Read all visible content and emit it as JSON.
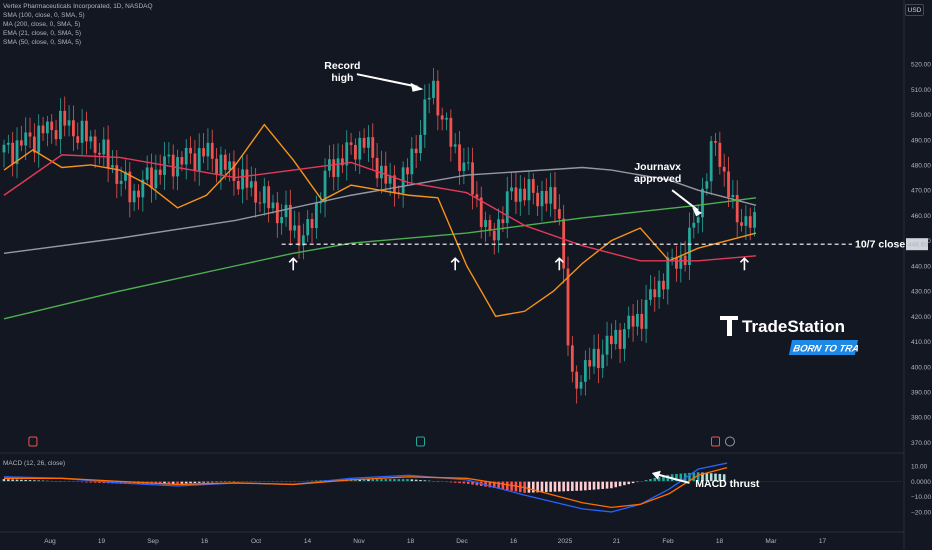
{
  "header": {
    "title": "Vertex Pharmaceuticals Incorporated, 1D, NASDAQ",
    "indicators": [
      "SMA (100, close, 0, SMA, 5)",
      "MA (200, close, 0, SMA, 5)",
      "EMA (21, close, 0, SMA, 5)",
      "SMA (50, close, 0, SMA, 5)"
    ],
    "currency": "USD"
  },
  "brand": {
    "name": "TradeStation",
    "tagline": "BORN TO TRADE"
  },
  "colors": {
    "up": "#26a69a",
    "down": "#ef5350",
    "sma100": "#9598a1",
    "ma200": "#4caf50",
    "ema21": "#f7931a",
    "sma50": "#e53958",
    "macd_line": "#2962ff",
    "signal_line": "#ff6d00"
  },
  "chart_data": [
    {
      "type": "candlestick",
      "title": "Vertex Pharmaceuticals Incorporated, 1D, NASDAQ",
      "ylim": [
        367,
        524
      ],
      "yticks": [
        370,
        380,
        390,
        400,
        410,
        420,
        430,
        440,
        450,
        460,
        470,
        480,
        490,
        500,
        510,
        520
      ],
      "ytick_labels": [
        "370.00",
        "380.00",
        "390.00",
        "400.00",
        "410.00",
        "420.00",
        "430.00",
        "440.00",
        "450.00",
        "460.00",
        "470.00",
        "480.00",
        "490.00",
        "500.00",
        "510.00",
        "520.00"
      ],
      "xticks": [
        "Aug",
        "19",
        "Sep",
        "16",
        "Oct",
        "14",
        "Nov",
        "18",
        "Dec",
        "16",
        "2025",
        "21",
        "Feb",
        "18",
        "Mar",
        "17"
      ],
      "last_price": "448.60",
      "series": [
        {
          "name": "SMA (100, close, 0, SMA, 5)",
          "x": [
            0,
            40,
            80,
            120,
            160,
            200,
            210,
            230,
            240,
            260
          ],
          "values": [
            445,
            451,
            458,
            468,
            476,
            479,
            478,
            474,
            470,
            464
          ]
        },
        {
          "name": "MA (200, close, 0, SMA, 5)",
          "x": [
            0,
            40,
            80,
            100,
            120,
            160,
            200,
            240,
            260
          ],
          "values": [
            419,
            430,
            440,
            445,
            449,
            453,
            459,
            464,
            467
          ]
        },
        {
          "name": "EMA (21, close, 0, SMA, 5)",
          "x": [
            0,
            10,
            20,
            30,
            40,
            50,
            60,
            70,
            80,
            90,
            100,
            110,
            120,
            130,
            140,
            150,
            160,
            170,
            180,
            190,
            200,
            210,
            220,
            230,
            240,
            250,
            260
          ],
          "values": [
            478,
            486,
            479,
            480,
            478,
            472,
            463,
            468,
            480,
            496,
            482,
            466,
            472,
            470,
            468,
            467,
            440,
            420,
            422,
            430,
            441,
            450,
            455,
            442,
            447,
            450,
            453
          ]
        },
        {
          "name": "SMA (50, close, 0, SMA, 5)",
          "x": [
            0,
            20,
            40,
            60,
            80,
            100,
            120,
            140,
            160,
            180,
            200,
            220,
            240,
            260
          ],
          "values": [
            468,
            484,
            483,
            479,
            475,
            478,
            481,
            473,
            469,
            456,
            448,
            442,
            442,
            444
          ]
        }
      ],
      "annotations": [
        {
          "text": "Record high",
          "x": 148,
          "y": 521
        },
        {
          "text": "Journavx approved",
          "x": 240,
          "y": 460
        },
        {
          "text": "10/7 close",
          "x": 260,
          "y": 448.6
        }
      ],
      "support_marks": [
        {
          "x": 100
        },
        {
          "x": 156
        },
        {
          "x": 192
        },
        {
          "x": 256
        }
      ]
    },
    {
      "type": "bar",
      "title": "MACD (12, 26, close)",
      "ylim": [
        -22,
        14
      ],
      "yticks": [
        10,
        0,
        -10,
        -20
      ],
      "ytick_labels": [
        "10.00",
        "0.0000",
        "−10.00",
        "−20.00"
      ],
      "series": [
        {
          "name": "MACD",
          "x": [
            0,
            20,
            40,
            60,
            80,
            100,
            120,
            140,
            160,
            180,
            200,
            210,
            220,
            230,
            240,
            250
          ],
          "values": [
            3,
            2,
            -1,
            -3,
            -1,
            -2,
            2,
            4,
            1,
            -9,
            -18,
            -20,
            -15,
            -5,
            8,
            12
          ]
        },
        {
          "name": "Signal",
          "x": [
            0,
            20,
            40,
            60,
            80,
            100,
            120,
            140,
            160,
            180,
            200,
            210,
            220,
            230,
            240,
            250
          ],
          "values": [
            2,
            2,
            0,
            -2,
            -1,
            -2,
            1,
            3,
            2,
            -4,
            -14,
            -17,
            -15,
            -8,
            4,
            9
          ]
        }
      ],
      "annotation": "MACD thrust"
    }
  ]
}
